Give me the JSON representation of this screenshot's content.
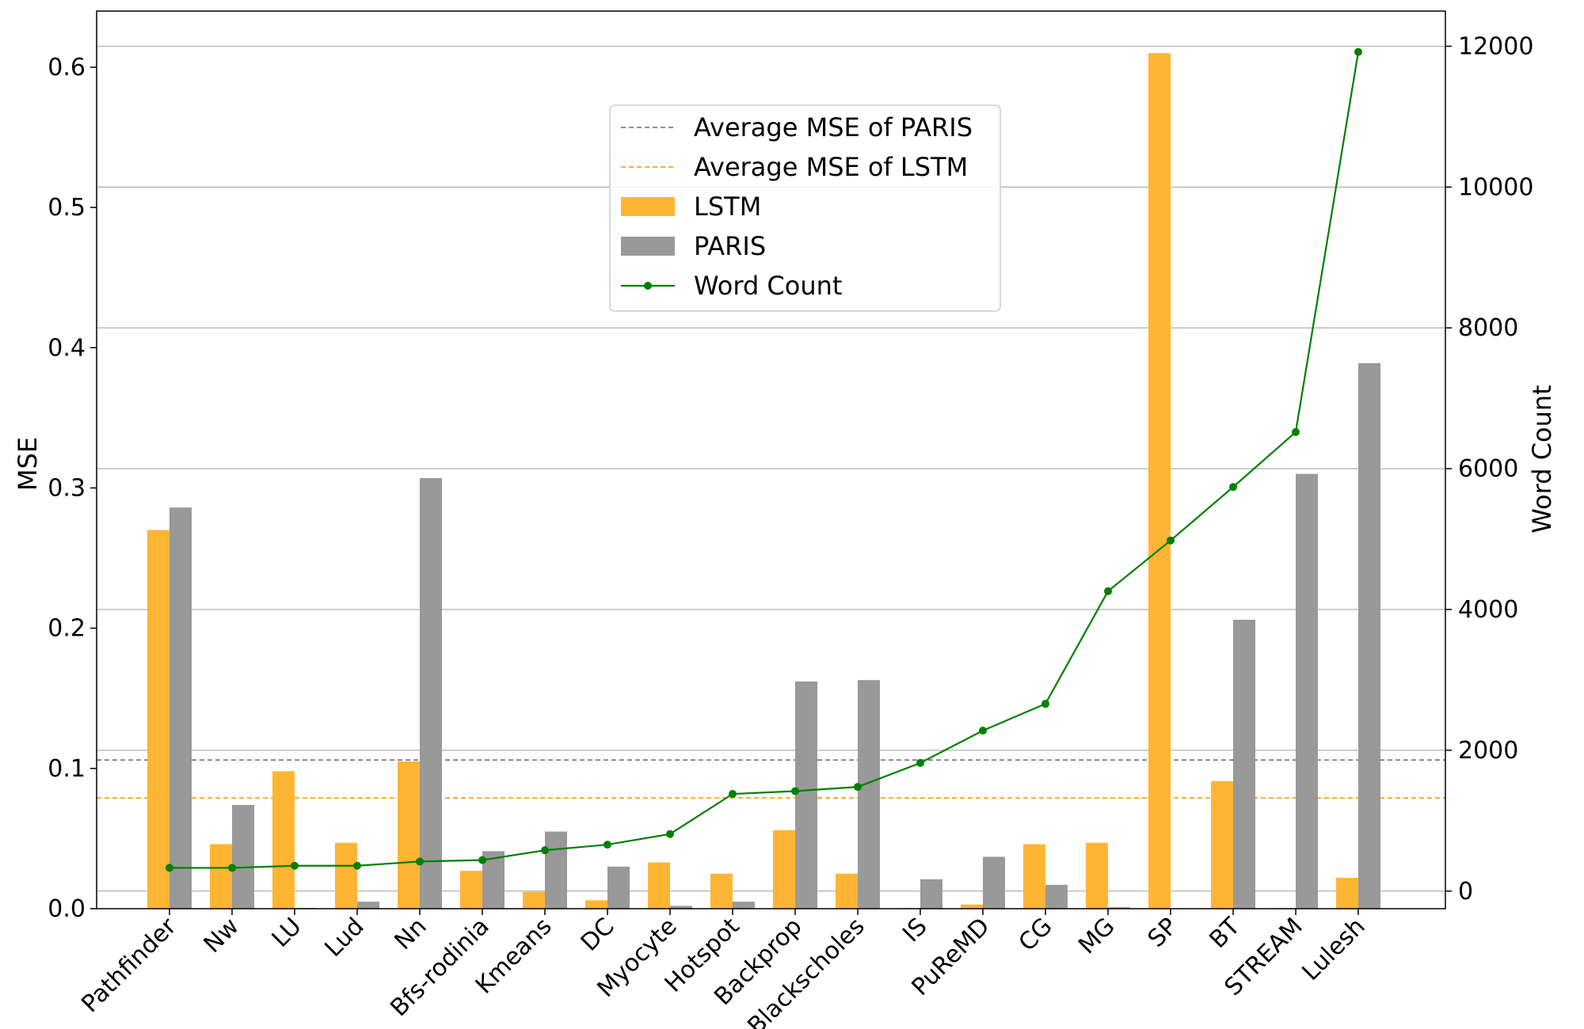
{
  "chart_data": {
    "type": "bar",
    "categories": [
      "Pathfinder",
      "Nw",
      "LU",
      "Lud",
      "Nn",
      "Bfs-rodinia",
      "Kmeans",
      "DC",
      "Myocyte",
      "Hotspot",
      "Backprop",
      "Blackscholes",
      "IS",
      "PuReMD",
      "CG",
      "MG",
      "SP",
      "BT",
      "STREAM",
      "Lulesh"
    ],
    "series": [
      {
        "name": "LSTM",
        "kind": "bar",
        "axis": "left",
        "color": "#ffb534",
        "values": [
          0.27,
          0.046,
          0.098,
          0.047,
          0.105,
          0.027,
          0.012,
          0.006,
          0.033,
          0.025,
          0.056,
          0.025,
          0.0005,
          0.003,
          0.046,
          0.047,
          0.61,
          0.091,
          0.0005,
          0.022
        ]
      },
      {
        "name": "PARIS",
        "kind": "bar",
        "axis": "left",
        "color": "#999999",
        "values": [
          0.286,
          0.074,
          0.0005,
          0.005,
          0.307,
          0.041,
          0.055,
          0.03,
          0.002,
          0.005,
          0.162,
          0.163,
          0.021,
          0.037,
          0.017,
          0.001,
          0.0,
          0.206,
          0.31,
          0.389
        ]
      },
      {
        "name": "Word Count",
        "kind": "line",
        "axis": "right",
        "color": "#008000",
        "values": [
          330,
          330,
          360,
          360,
          420,
          440,
          580,
          660,
          810,
          1380,
          1420,
          1480,
          1820,
          2280,
          2660,
          4260,
          4980,
          5740,
          6520,
          11920
        ]
      },
      {
        "name": "Average MSE of PARIS",
        "kind": "hline",
        "axis": "left",
        "color": "#808080",
        "value": 0.106
      },
      {
        "name": "Average MSE of LSTM",
        "kind": "hline",
        "axis": "left",
        "color": "#ffa500",
        "value": 0.079
      }
    ],
    "ylabel": "MSE",
    "y2label": "Word Count",
    "ylim": [
      0,
      0.64
    ],
    "y2lim": [
      -250,
      12500
    ],
    "yticks": [
      "0.0",
      "0.1",
      "0.2",
      "0.3",
      "0.4",
      "0.5",
      "0.6"
    ],
    "y2ticks": [
      "0",
      "2000",
      "4000",
      "6000",
      "8000",
      "10000",
      "12000"
    ],
    "grid": "horizontal, right axis",
    "legend": {
      "placement": "upper center",
      "entries": [
        "Average MSE of PARIS",
        "Average MSE of LSTM",
        "LSTM",
        "PARIS",
        "Word Count"
      ]
    }
  }
}
